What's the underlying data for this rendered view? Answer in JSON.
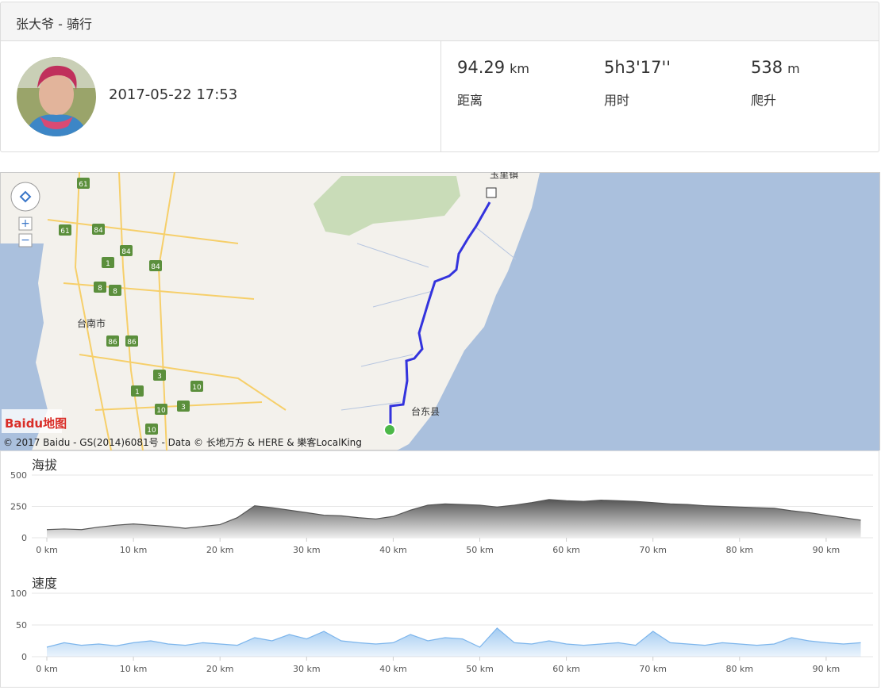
{
  "header": {
    "title": "张大爷 - 骑行"
  },
  "profile": {
    "datetime": "2017-05-22 17:53"
  },
  "stats": [
    {
      "value": 94.29,
      "unit": "km",
      "label": "距离"
    },
    {
      "value": "5h3'17''",
      "label": "用时"
    },
    {
      "value": 538,
      "unit": "m",
      "label": "爬升"
    }
  ],
  "map": {
    "places": [
      "玉里镇",
      "台南市",
      "台东县"
    ],
    "roads": [
      "61",
      "84",
      "61",
      "84",
      "84",
      "1",
      "8",
      "8",
      "86",
      "86",
      "3",
      "1",
      "10",
      "10",
      "3",
      "10"
    ],
    "logo": "Baidu地图",
    "copyright": "© 2017 Baidu - GS(2014)6081号 - Data © 长地万方 & HERE & 樂客LocalKing"
  },
  "chart_data": [
    {
      "type": "area",
      "title": "海拔",
      "color": "#555555",
      "x": [
        0,
        2,
        4,
        6,
        8,
        10,
        12,
        14,
        16,
        18,
        20,
        22,
        24,
        26,
        28,
        30,
        32,
        34,
        36,
        38,
        40,
        42,
        44,
        46,
        48,
        50,
        52,
        54,
        56,
        58,
        60,
        62,
        64,
        66,
        68,
        70,
        72,
        74,
        76,
        78,
        80,
        82,
        84,
        86,
        88,
        90,
        92,
        94
      ],
      "values": [
        65,
        70,
        65,
        85,
        100,
        110,
        100,
        90,
        75,
        90,
        105,
        160,
        255,
        240,
        220,
        200,
        180,
        175,
        160,
        150,
        170,
        220,
        260,
        270,
        265,
        260,
        245,
        260,
        280,
        305,
        295,
        290,
        300,
        295,
        290,
        280,
        270,
        265,
        255,
        250,
        245,
        240,
        235,
        215,
        200,
        180,
        160,
        140
      ],
      "xlim": [
        0,
        94.29
      ],
      "ylim": [
        0,
        500
      ],
      "yticks": [
        0,
        250,
        500
      ],
      "xticks": [
        {
          "value": 0,
          "label": "0 km"
        },
        {
          "value": 10,
          "label": "10 km"
        },
        {
          "value": 20,
          "label": "20 km"
        },
        {
          "value": 30,
          "label": "30 km"
        },
        {
          "value": 40,
          "label": "40 km"
        },
        {
          "value": 50,
          "label": "50 km"
        },
        {
          "value": 60,
          "label": "60 km"
        },
        {
          "value": 70,
          "label": "70 km"
        },
        {
          "value": 80,
          "label": "80 km"
        },
        {
          "value": 90,
          "label": "90 km"
        }
      ]
    },
    {
      "type": "area",
      "title": "速度",
      "color": "#7cb5ec",
      "x": [
        0,
        2,
        4,
        6,
        8,
        10,
        12,
        14,
        16,
        18,
        20,
        22,
        24,
        26,
        28,
        30,
        32,
        34,
        36,
        38,
        40,
        42,
        44,
        46,
        48,
        50,
        52,
        54,
        56,
        58,
        60,
        62,
        64,
        66,
        68,
        70,
        72,
        74,
        76,
        78,
        80,
        82,
        84,
        86,
        88,
        90,
        92,
        94
      ],
      "values": [
        15,
        22,
        18,
        20,
        17,
        22,
        25,
        20,
        18,
        22,
        20,
        18,
        30,
        25,
        35,
        28,
        40,
        25,
        22,
        20,
        22,
        35,
        25,
        30,
        28,
        15,
        45,
        22,
        20,
        25,
        20,
        18,
        20,
        22,
        18,
        40,
        22,
        20,
        18,
        22,
        20,
        18,
        20,
        30,
        25,
        22,
        20,
        22
      ],
      "xlim": [
        0,
        94.29
      ],
      "ylim": [
        0,
        100
      ],
      "yticks": [
        0,
        50,
        100
      ],
      "xticks": [
        {
          "value": 0,
          "label": "0 km"
        },
        {
          "value": 10,
          "label": "10 km"
        },
        {
          "value": 20,
          "label": "20 km"
        },
        {
          "value": 30,
          "label": "30 km"
        },
        {
          "value": 40,
          "label": "40 km"
        },
        {
          "value": 50,
          "label": "50 km"
        },
        {
          "value": 60,
          "label": "60 km"
        },
        {
          "value": 70,
          "label": "70 km"
        },
        {
          "value": 80,
          "label": "80 km"
        },
        {
          "value": 90,
          "label": "90 km"
        }
      ]
    }
  ]
}
